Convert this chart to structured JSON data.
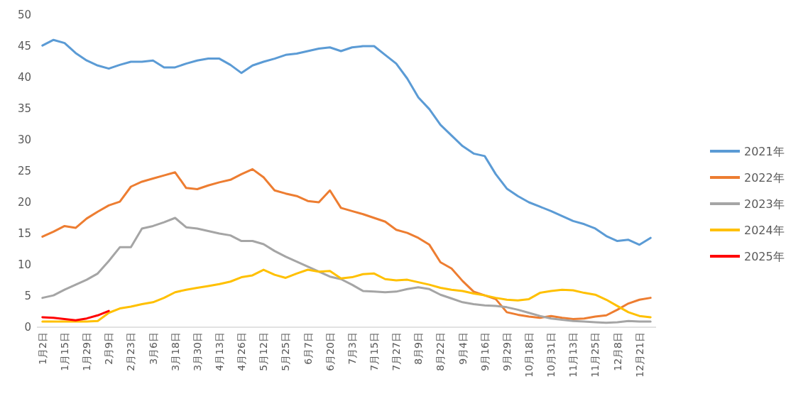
{
  "chart_data": {
    "type": "line",
    "categories": [
      "1月2日",
      null,
      "1月15日",
      null,
      "1月29日",
      null,
      "2月9日",
      null,
      "2月23日",
      null,
      "3月6日",
      null,
      "3月18日",
      null,
      "3月30日",
      null,
      "4月13日",
      null,
      "4月26日",
      null,
      "5月12日",
      null,
      "5月25日",
      null,
      "6月7日",
      null,
      "6月20日",
      null,
      "7月3日",
      null,
      "7月15日",
      null,
      "7月27日",
      null,
      "8月9日",
      null,
      "8月22日",
      null,
      "9月4日",
      null,
      "9月16日",
      null,
      "9月29日",
      null,
      "10月18日",
      null,
      "10月31日",
      null,
      "11月13日",
      null,
      "11月25日",
      null,
      "12月8日",
      null,
      "12月21日",
      null
    ],
    "series": [
      {
        "name": "2021年",
        "color": "#5b9bd5",
        "values": [
          45.1,
          46,
          45.5,
          43.9,
          42.7,
          41.9,
          41.4,
          42,
          42.5,
          42.5,
          42.7,
          41.6,
          41.6,
          42.2,
          42.7,
          43,
          43,
          42,
          40.7,
          41.9,
          42.5,
          43,
          43.6,
          43.8,
          44.2,
          44.6,
          44.8,
          44.2,
          44.8,
          45,
          45,
          43.6,
          42.2,
          39.8,
          36.8,
          34.9,
          32.4,
          30.7,
          29,
          27.8,
          27.4,
          24.5,
          22.2,
          21,
          20,
          19.3,
          18.6,
          17.8,
          17,
          16.5,
          15.8,
          14.6,
          13.8,
          14,
          13.2,
          14.3
        ]
      },
      {
        "name": "2022年",
        "color": "#ed7d31",
        "values": [
          14.5,
          15.3,
          16.2,
          15.9,
          17.4,
          18.5,
          19.5,
          20.1,
          22.5,
          23.3,
          23.8,
          24.3,
          24.8,
          22.3,
          22.1,
          22.7,
          23.2,
          23.6,
          24.5,
          25.3,
          24,
          21.9,
          21.4,
          21,
          20.2,
          20,
          21.9,
          19.1,
          18.6,
          18.1,
          17.5,
          16.9,
          15.6,
          15.1,
          14.3,
          13.2,
          10.4,
          9.4,
          7.4,
          5.7,
          5.1,
          4.5,
          2.4,
          2,
          1.7,
          1.5,
          1.8,
          1.5,
          1.3,
          1.4,
          1.7,
          1.9,
          2.8,
          3.8,
          4.4,
          4.7
        ]
      },
      {
        "name": "2023年",
        "color": "#a5a5a5",
        "values": [
          4.7,
          5.1,
          6,
          6.8,
          7.6,
          8.6,
          10.6,
          12.8,
          12.8,
          15.8,
          16.2,
          16.8,
          17.5,
          16,
          15.8,
          15.4,
          15,
          14.7,
          13.8,
          13.8,
          13.3,
          12.2,
          11.3,
          10.5,
          9.7,
          8.9,
          8.1,
          7.7,
          6.8,
          5.8,
          5.7,
          5.6,
          5.7,
          6.1,
          6.4,
          6.1,
          5.2,
          4.6,
          4,
          3.7,
          3.5,
          3.4,
          3.2,
          2.8,
          2.3,
          1.8,
          1.4,
          1.2,
          1,
          0.9,
          0.8,
          0.7,
          0.8,
          1,
          0.9,
          0.9
        ]
      },
      {
        "name": "2024年",
        "color": "#ffc000",
        "values": [
          0.9,
          0.9,
          0.9,
          0.9,
          0.9,
          1,
          2.3,
          3,
          3.3,
          3.7,
          4,
          4.7,
          5.6,
          6,
          6.3,
          6.6,
          6.9,
          7.3,
          8,
          8.3,
          9.2,
          8.4,
          7.9,
          8.6,
          9.2,
          8.9,
          9,
          7.8,
          8,
          8.5,
          8.6,
          7.7,
          7.5,
          7.6,
          7.2,
          6.8,
          6.3,
          6,
          5.8,
          5.4,
          5.1,
          4.7,
          4.4,
          4.3,
          4.5,
          5.5,
          5.8,
          6,
          5.9,
          5.5,
          5.2,
          4.4,
          3.4,
          2.4,
          1.8,
          1.6
        ]
      },
      {
        "name": "2025年",
        "color": "#ff0000",
        "values": [
          1.6,
          1.5,
          1.3,
          1.1,
          1.4,
          1.9,
          2.6,
          null,
          null,
          null,
          null,
          null,
          null,
          null,
          null,
          null,
          null,
          null,
          null,
          null,
          null,
          null,
          null,
          null,
          null,
          null,
          null,
          null,
          null,
          null,
          null,
          null,
          null,
          null,
          null,
          null,
          null,
          null,
          null,
          null,
          null,
          null,
          null,
          null,
          null,
          null,
          null,
          null,
          null,
          null,
          null,
          null,
          null,
          null,
          null,
          null
        ]
      }
    ],
    "ylim": [
      0,
      50
    ],
    "yticks": [
      0,
      5,
      10,
      15,
      20,
      25,
      30,
      35,
      40,
      45,
      50
    ],
    "grid": false,
    "legend": "right"
  }
}
